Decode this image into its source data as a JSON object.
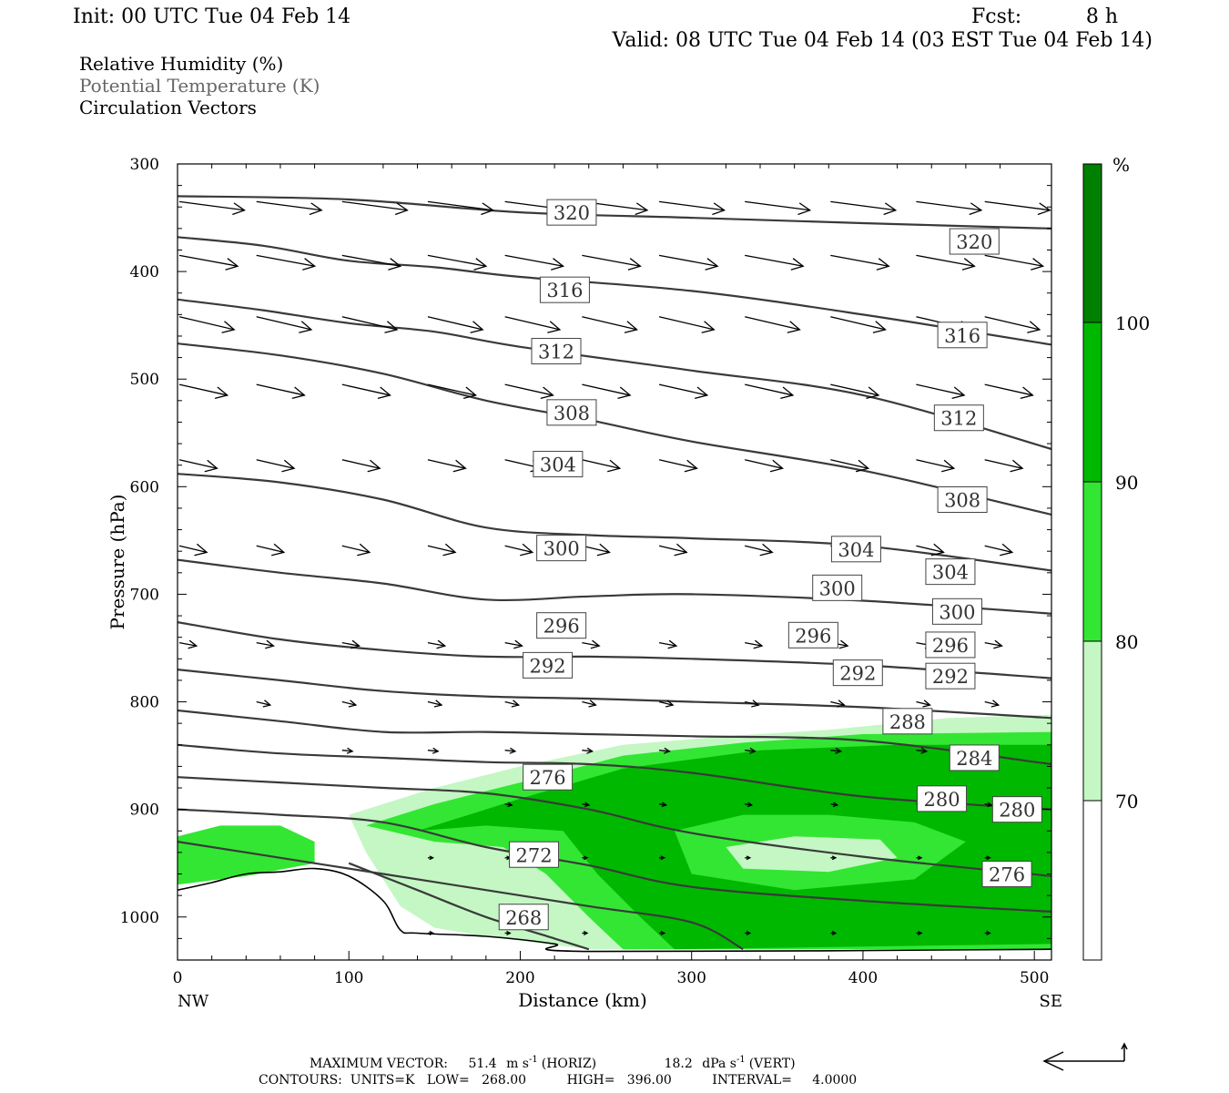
{
  "header": {
    "init": "Init: 00 UTC Tue 04 Feb 14",
    "fcst_label": "Fcst:",
    "fcst_value": "8 h",
    "valid": "Valid: 08 UTC Tue 04 Feb 14 (03 EST Tue 04 Feb 14)"
  },
  "legend": {
    "line1": "Relative Humidity (%)",
    "line2": "Potential Temperature (K)",
    "line3": "Circulation Vectors"
  },
  "colors": {
    "rh_70": "#c4f7c4",
    "rh_80": "#33e633",
    "rh_90": "#00b800",
    "rh_100": "#008000",
    "contour": "#3a3a3a",
    "vector": "#000000"
  },
  "chart_data": {
    "type": "cross-section",
    "xlabel": "Distance (km)",
    "ylabel": "Pressure (hPa)",
    "xlim": [
      0,
      510
    ],
    "ylim": [
      300,
      1040
    ],
    "x_ticks": [
      0,
      100,
      200,
      300,
      400,
      500
    ],
    "y_ticks": [
      300,
      400,
      500,
      600,
      700,
      800,
      900,
      1000
    ],
    "x_end_labels": {
      "left": "NW",
      "right": "SE"
    },
    "colorbar": {
      "unit": "%",
      "levels": [
        70,
        80,
        90,
        100
      ]
    },
    "theta_contours": [
      {
        "level": 320,
        "points": [
          [
            0,
            330
          ],
          [
            100,
            333
          ],
          [
            200,
            345
          ],
          [
            300,
            350
          ],
          [
            400,
            355
          ],
          [
            510,
            360
          ]
        ],
        "labels": [
          [
            230,
            345
          ],
          [
            465,
            372
          ]
        ]
      },
      {
        "level": 316,
        "points": [
          [
            0,
            368
          ],
          [
            50,
            376
          ],
          [
            100,
            390
          ],
          [
            150,
            396
          ],
          [
            200,
            405
          ],
          [
            300,
            418
          ],
          [
            400,
            440
          ],
          [
            510,
            468
          ]
        ],
        "labels": [
          [
            226,
            417
          ],
          [
            458,
            459
          ]
        ]
      },
      {
        "level": 312,
        "points": [
          [
            0,
            426
          ],
          [
            50,
            436
          ],
          [
            100,
            448
          ],
          [
            150,
            456
          ],
          [
            200,
            470
          ],
          [
            300,
            492
          ],
          [
            400,
            515
          ],
          [
            510,
            565
          ]
        ],
        "labels": [
          [
            221,
            474
          ],
          [
            456,
            536
          ]
        ]
      },
      {
        "level": 308,
        "points": [
          [
            0,
            467
          ],
          [
            60,
            478
          ],
          [
            120,
            495
          ],
          [
            180,
            520
          ],
          [
            240,
            538
          ],
          [
            300,
            558
          ],
          [
            400,
            585
          ],
          [
            510,
            626
          ]
        ],
        "labels": [
          [
            230,
            531
          ],
          [
            458,
            612
          ]
        ]
      },
      {
        "level": 304,
        "points": [
          [
            0,
            588
          ],
          [
            60,
            596
          ],
          [
            120,
            612
          ],
          [
            180,
            638
          ],
          [
            240,
            645
          ],
          [
            300,
            648
          ],
          [
            400,
            655
          ],
          [
            510,
            678
          ]
        ],
        "labels": [
          [
            222,
            579
          ],
          [
            396,
            658
          ],
          [
            451,
            679
          ]
        ]
      },
      {
        "level": 300,
        "points": [
          [
            0,
            668
          ],
          [
            60,
            680
          ],
          [
            120,
            690
          ],
          [
            180,
            705
          ],
          [
            240,
            702
          ],
          [
            300,
            700
          ],
          [
            400,
            706
          ],
          [
            510,
            718
          ]
        ],
        "labels": [
          [
            224,
            657
          ],
          [
            385,
            694
          ],
          [
            455,
            716
          ]
        ]
      },
      {
        "level": 296,
        "points": [
          [
            0,
            726
          ],
          [
            60,
            742
          ],
          [
            120,
            752
          ],
          [
            180,
            758
          ],
          [
            240,
            758
          ],
          [
            300,
            760
          ],
          [
            400,
            766
          ],
          [
            510,
            778
          ]
        ],
        "labels": [
          [
            224,
            729
          ],
          [
            371,
            738
          ],
          [
            451,
            747
          ]
        ]
      },
      {
        "level": 292,
        "points": [
          [
            0,
            770
          ],
          [
            60,
            780
          ],
          [
            120,
            790
          ],
          [
            180,
            795
          ],
          [
            240,
            797
          ],
          [
            300,
            800
          ],
          [
            400,
            805
          ],
          [
            510,
            815
          ]
        ],
        "labels": [
          [
            216,
            766
          ],
          [
            397,
            773
          ],
          [
            451,
            776
          ]
        ]
      },
      {
        "level": 288,
        "points": [
          [
            0,
            808
          ],
          [
            60,
            818
          ],
          [
            120,
            828
          ],
          [
            180,
            828
          ],
          [
            240,
            830
          ],
          [
            300,
            832
          ],
          [
            400,
            836
          ],
          [
            510,
            858
          ]
        ],
        "labels": [
          [
            426,
            818
          ]
        ]
      },
      {
        "level": 284,
        "points": [
          [
            0,
            840
          ],
          [
            60,
            848
          ],
          [
            120,
            852
          ],
          [
            180,
            856
          ],
          [
            240,
            858
          ],
          [
            300,
            866
          ],
          [
            400,
            888
          ],
          [
            510,
            900
          ]
        ],
        "labels": [
          [
            465,
            852
          ]
        ]
      },
      {
        "level": 280,
        "points": [
          [
            0,
            870
          ],
          [
            60,
            875
          ],
          [
            120,
            880
          ],
          [
            180,
            885
          ],
          [
            240,
            900
          ],
          [
            300,
            922
          ],
          [
            400,
            944
          ],
          [
            510,
            962
          ]
        ],
        "labels": [
          [
            446,
            890
          ],
          [
            490,
            900
          ]
        ]
      },
      {
        "level": 276,
        "points": [
          [
            0,
            900
          ],
          [
            60,
            905
          ],
          [
            120,
            912
          ],
          [
            180,
            935
          ],
          [
            240,
            952
          ],
          [
            300,
            972
          ],
          [
            400,
            985
          ],
          [
            510,
            995
          ]
        ],
        "labels": [
          [
            216,
            870
          ],
          [
            484,
            960
          ]
        ]
      },
      {
        "level": 272,
        "points": [
          [
            0,
            930
          ],
          [
            60,
            945
          ],
          [
            120,
            960
          ],
          [
            180,
            975
          ],
          [
            240,
            990
          ],
          [
            300,
            1005
          ],
          [
            330,
            1030
          ]
        ],
        "labels": [
          [
            208,
            942
          ]
        ]
      },
      {
        "level": 268,
        "points": [
          [
            100,
            950
          ],
          [
            140,
            975
          ],
          [
            180,
            1000
          ],
          [
            220,
            1020
          ],
          [
            240,
            1030
          ]
        ],
        "labels": [
          [
            202,
            1000
          ]
        ]
      }
    ],
    "terrain": {
      "points": [
        [
          0,
          975
        ],
        [
          20,
          968
        ],
        [
          40,
          960
        ],
        [
          60,
          958
        ],
        [
          80,
          955
        ],
        [
          100,
          962
        ],
        [
          120,
          985
        ],
        [
          130,
          1012
        ],
        [
          140,
          1015
        ],
        [
          180,
          1018
        ],
        [
          220,
          1025
        ],
        [
          240,
          1032
        ],
        [
          510,
          1030
        ]
      ]
    },
    "rh_regions": [
      {
        "level": 70,
        "points": [
          [
            100,
            905
          ],
          [
            150,
            880
          ],
          [
            200,
            860
          ],
          [
            260,
            840
          ],
          [
            320,
            832
          ],
          [
            380,
            826
          ],
          [
            450,
            815
          ],
          [
            510,
            812
          ],
          [
            510,
            1030
          ],
          [
            240,
            1030
          ],
          [
            180,
            1018
          ],
          [
            150,
            1010
          ],
          [
            130,
            990
          ],
          [
            110,
            940
          ]
        ]
      },
      {
        "level": 80,
        "points": [
          [
            110,
            915
          ],
          [
            150,
            895
          ],
          [
            200,
            875
          ],
          [
            260,
            850
          ],
          [
            330,
            838
          ],
          [
            400,
            830
          ],
          [
            510,
            828
          ],
          [
            510,
            1030
          ],
          [
            260,
            1030
          ],
          [
            240,
            1000
          ],
          [
            215,
            960
          ],
          [
            190,
            935
          ],
          [
            150,
            930
          ]
        ]
      },
      {
        "level": 90,
        "points": [
          [
            140,
            920
          ],
          [
            200,
            890
          ],
          [
            260,
            862
          ],
          [
            340,
            845
          ],
          [
            420,
            840
          ],
          [
            510,
            840
          ],
          [
            510,
            1025
          ],
          [
            290,
            1030
          ],
          [
            270,
            1000
          ],
          [
            245,
            960
          ],
          [
            225,
            920
          ],
          [
            180,
            915
          ]
        ]
      },
      {
        "level": 80,
        "points": [
          [
            290,
            920
          ],
          [
            330,
            905
          ],
          [
            380,
            905
          ],
          [
            430,
            912
          ],
          [
            460,
            930
          ],
          [
            430,
            965
          ],
          [
            360,
            975
          ],
          [
            300,
            960
          ]
        ]
      },
      {
        "level": 70,
        "points": [
          [
            320,
            935
          ],
          [
            360,
            925
          ],
          [
            410,
            928
          ],
          [
            420,
            945
          ],
          [
            380,
            958
          ],
          [
            330,
            955
          ]
        ]
      },
      {
        "level": 90,
        "points": [
          [
            0,
            930
          ],
          [
            25,
            920
          ],
          [
            50,
            918
          ],
          [
            70,
            928
          ],
          [
            75,
            940
          ],
          [
            50,
            950
          ],
          [
            30,
            955
          ],
          [
            10,
            960
          ],
          [
            0,
            958
          ]
        ]
      },
      {
        "level": 80,
        "points": [
          [
            0,
            925
          ],
          [
            25,
            915
          ],
          [
            60,
            915
          ],
          [
            80,
            930
          ],
          [
            80,
            950
          ],
          [
            40,
            962
          ],
          [
            0,
            970
          ]
        ]
      }
    ],
    "vectors": [
      {
        "p": 335,
        "xs": [
          0,
          45,
          95,
          145,
          190,
          235,
          280,
          330,
          380,
          430,
          470,
          510
        ],
        "dx": 38,
        "dp": 8
      },
      {
        "p": 385,
        "xs": [
          0,
          45,
          95,
          145,
          190,
          235,
          280,
          330,
          380,
          430,
          470,
          510
        ],
        "dx": 34,
        "dp": 10
      },
      {
        "p": 442,
        "xs": [
          0,
          45,
          95,
          145,
          190,
          235,
          280,
          330,
          380,
          430,
          470,
          510
        ],
        "dx": 32,
        "dp": 12
      },
      {
        "p": 505,
        "xs": [
          0,
          45,
          95,
          145,
          190,
          235,
          280,
          330,
          380,
          430,
          470,
          510
        ],
        "dx": 28,
        "dp": 10
      },
      {
        "p": 575,
        "xs": [
          0,
          45,
          95,
          145,
          190,
          235,
          280,
          330,
          380,
          430,
          470,
          510
        ],
        "dx": 22,
        "dp": 8
      },
      {
        "p": 655,
        "xs": [
          0,
          45,
          95,
          145,
          190,
          235,
          280,
          330,
          380,
          430,
          470,
          510
        ],
        "dx": 16,
        "dp": 6
      },
      {
        "p": 745,
        "xs": [
          0,
          45,
          95,
          145,
          190,
          235,
          280,
          330,
          380,
          430,
          470,
          510
        ],
        "dx": 10,
        "dp": 3
      },
      {
        "p": 800,
        "xs": [
          45,
          95,
          145,
          190,
          235,
          280,
          330,
          380,
          430,
          470,
          510
        ],
        "dx": 8,
        "dp": 3
      },
      {
        "p": 845,
        "xs": [
          95,
          145,
          190,
          235,
          280,
          330,
          380,
          430,
          470,
          510
        ],
        "dx": 6,
        "dp": 1
      },
      {
        "p": 895,
        "xs": [
          190,
          235,
          280,
          330,
          380,
          430,
          470,
          510
        ],
        "dx": 4,
        "dp": 1
      },
      {
        "p": 945,
        "xs": [
          145,
          190,
          235,
          280,
          330,
          380,
          430,
          470,
          510
        ],
        "dx": 3,
        "dp": 0
      },
      {
        "p": 1015,
        "xs": [
          145,
          190,
          235,
          280,
          330,
          380,
          430,
          470,
          510
        ],
        "dx": 3,
        "dp": 0
      }
    ]
  },
  "footer": {
    "max_vector_prefix": "MAXIMUM VECTOR:",
    "horiz_value": "51.4",
    "horiz_unit": "m s",
    "horiz_exp": "-1",
    "horiz_label": "(HORIZ)",
    "vert_value": "18.2",
    "vert_unit": "dPa s",
    "vert_exp": "-1",
    "vert_label": "(VERT)",
    "contours_line": "CONTOURS:  UNITS=K   LOW=   268.00          HIGH=   396.00          INTERVAL=     4.0000"
  }
}
